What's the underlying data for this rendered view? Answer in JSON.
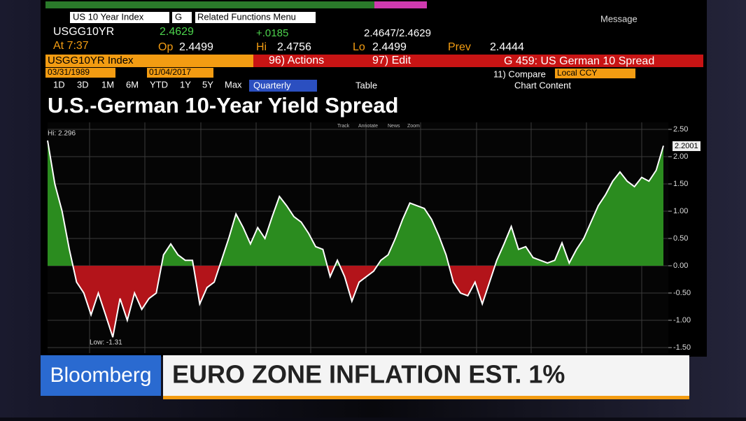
{
  "terminal": {
    "security_field": "US 10 Year Index",
    "g_field": "G",
    "menu": "Related Functions Menu",
    "message": "Message",
    "ticker": "USGG10YR",
    "last": "2.4629",
    "change": "+.0185",
    "bid_ask": "2.4647/2.4629",
    "time": "At 7:37",
    "open_label": "Op",
    "open": "2.4499",
    "high_label": "Hi",
    "high": "2.4756",
    "low_label": "Lo",
    "low": "2.4499",
    "prev_label": "Prev",
    "prev": "2.4444",
    "index": "USGG10YR Index",
    "actions": "96) Actions",
    "edit": "97) Edit",
    "function": "G 459: US German 10 Spread",
    "start_date": "03/31/1989",
    "end_date": "01/04/2017",
    "compare": "11) Compare",
    "currency": "Local CCY",
    "ranges": [
      "1D",
      "3D",
      "1M",
      "6M",
      "YTD",
      "1Y",
      "5Y",
      "Max"
    ],
    "period": "Quarterly",
    "table": "Table",
    "chart_content": "Chart Content",
    "tools": [
      "Track",
      "Annotate",
      "News",
      "Zoom"
    ]
  },
  "banner": {
    "brand": "Bloomberg",
    "headline": "EURO ZONE INFLATION EST. 1%"
  },
  "chart_data": {
    "type": "area",
    "title": "U.S.-German 10-Year Yield Spread",
    "values": [
      2.296,
      1.5,
      1.0,
      0.3,
      -0.3,
      -0.5,
      -0.9,
      -0.5,
      -0.9,
      -1.31,
      -0.6,
      -1.0,
      -0.5,
      -0.8,
      -0.6,
      -0.5,
      0.2,
      0.4,
      0.2,
      0.1,
      0.1,
      -0.7,
      -0.4,
      -0.3,
      0.1,
      0.5,
      0.95,
      0.7,
      0.4,
      0.7,
      0.5,
      0.9,
      1.27,
      1.1,
      0.9,
      0.8,
      0.6,
      0.35,
      0.3,
      -0.2,
      0.1,
      -0.2,
      -0.65,
      -0.3,
      -0.2,
      -0.1,
      0.1,
      0.2,
      0.5,
      0.85,
      1.15,
      1.1,
      1.05,
      0.85,
      0.55,
      0.2,
      -0.3,
      -0.5,
      -0.55,
      -0.3,
      -0.7,
      -0.3,
      0.1,
      0.4,
      0.72,
      0.3,
      0.35,
      0.15,
      0.1,
      0.05,
      0.1,
      0.42,
      0.05,
      0.3,
      0.5,
      0.8,
      1.1,
      1.3,
      1.55,
      1.72,
      1.55,
      1.45,
      1.62,
      1.55,
      1.75,
      2.2001
    ],
    "positive_color": "#2b8c1f",
    "negative_color": "#b3141a",
    "line_color": "#ffffff",
    "ylim": [
      -1.5,
      2.5
    ],
    "yticks": [
      {
        "value": -1.5,
        "label": "-1.50"
      },
      {
        "value": -1,
        "label": "-1.00"
      },
      {
        "value": -0.5,
        "label": "-0.50"
      },
      {
        "value": 0,
        "label": "0.00"
      },
      {
        "value": 0.5,
        "label": "0.50"
      },
      {
        "value": 1,
        "label": "1.00"
      },
      {
        "value": 1.5,
        "label": "1.50"
      },
      {
        "value": 2,
        "label": "2.00"
      },
      {
        "value": 2.5,
        "label": "2.50"
      }
    ],
    "grid": true,
    "annotations": {
      "high": "Hi: 2.296",
      "low": "Low: -1.31",
      "last": "2.2001"
    }
  }
}
